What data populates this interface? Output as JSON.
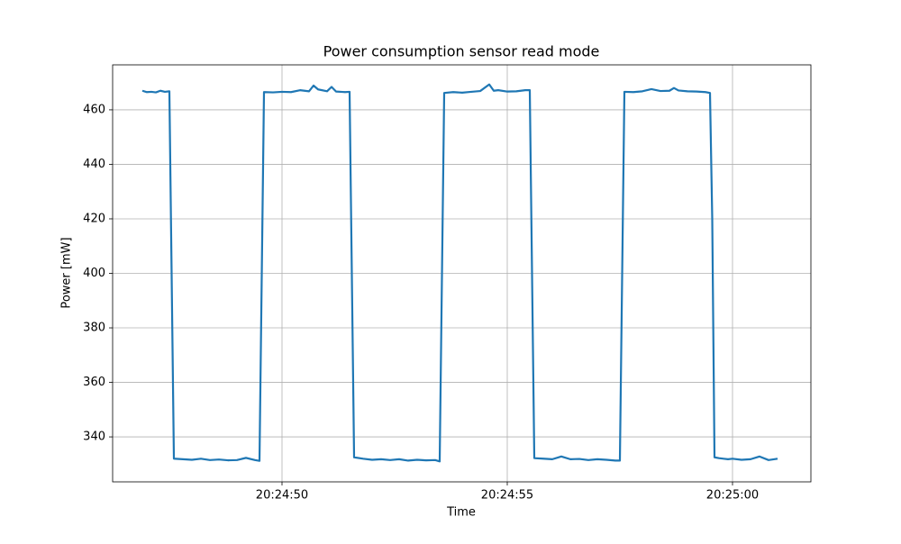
{
  "chart_data": {
    "type": "line",
    "title": "Power consumption sensor read mode",
    "xlabel": "Time",
    "ylabel": "Power [mW]",
    "color": "#1f77b4",
    "grid": true,
    "xlim": [
      "20:24:46.24",
      "20:25:01.74"
    ],
    "xticks": [
      "20:24:50",
      "20:24:55",
      "20:25:00"
    ],
    "ylim": [
      323.5,
      476.5
    ],
    "yticks": [
      340,
      360,
      380,
      400,
      420,
      440,
      460
    ],
    "x": [
      "20:24:46.9",
      "20:24:47.0",
      "20:24:47.1",
      "20:24:47.2",
      "20:24:47.3",
      "20:24:47.4",
      "20:24:47.5",
      "20:24:47.6",
      "20:24:47.8",
      "20:24:48.0",
      "20:24:48.2",
      "20:24:48.4",
      "20:24:48.6",
      "20:24:48.8",
      "20:24:49.0",
      "20:24:49.2",
      "20:24:49.4",
      "20:24:49.5",
      "20:24:49.6",
      "20:24:49.8",
      "20:24:50.0",
      "20:24:50.2",
      "20:24:50.4",
      "20:24:50.6",
      "20:24:50.7",
      "20:24:50.8",
      "20:24:51.0",
      "20:24:51.1",
      "20:24:51.2",
      "20:24:51.4",
      "20:24:51.5",
      "20:24:51.6",
      "20:24:51.8",
      "20:24:52.0",
      "20:24:52.2",
      "20:24:52.4",
      "20:24:52.6",
      "20:24:52.8",
      "20:24:53.0",
      "20:24:53.2",
      "20:24:53.4",
      "20:24:53.5",
      "20:24:53.6",
      "20:24:53.8",
      "20:24:54.0",
      "20:24:54.2",
      "20:24:54.4",
      "20:24:54.6",
      "20:24:54.7",
      "20:24:54.8",
      "20:24:55.0",
      "20:24:55.2",
      "20:24:55.4",
      "20:24:55.5",
      "20:24:55.6",
      "20:24:55.8",
      "20:24:56.0",
      "20:24:56.2",
      "20:24:56.4",
      "20:24:56.6",
      "20:24:56.8",
      "20:24:57.0",
      "20:24:57.2",
      "20:24:57.4",
      "20:24:57.5",
      "20:24:57.6",
      "20:24:57.8",
      "20:24:58.0",
      "20:24:58.2",
      "20:24:58.4",
      "20:24:58.6",
      "20:24:58.7",
      "20:24:58.8",
      "20:24:59.0",
      "20:24:59.2",
      "20:24:59.4",
      "20:24:59.5",
      "20:24:59.55",
      "20:24:59.6",
      "20:24:59.7",
      "20:24:59.8",
      "20:24:59.9",
      "20:25:00.0",
      "20:25:00.2",
      "20:25:00.4",
      "20:25:00.6",
      "20:25:00.8",
      "20:25:01.0"
    ],
    "values": [
      467,
      466.5,
      466.6,
      466.4,
      467,
      466.6,
      466.8,
      332,
      331.8,
      331.6,
      332,
      331.5,
      331.7,
      331.4,
      331.5,
      332.3,
      331.5,
      331.2,
      466.5,
      466.4,
      466.6,
      466.5,
      467.2,
      466.8,
      468.9,
      467.5,
      466.8,
      468.4,
      466.7,
      466.5,
      466.6,
      332.5,
      332,
      331.6,
      331.8,
      331.5,
      331.8,
      331.3,
      331.6,
      331.4,
      331.5,
      331,
      466.2,
      466.5,
      466.3,
      466.6,
      466.9,
      469.3,
      467,
      467.2,
      466.7,
      466.8,
      467.2,
      467.2,
      332.2,
      332,
      331.8,
      332.8,
      331.8,
      331.9,
      331.5,
      331.8,
      331.6,
      331.3,
      331.3,
      466.6,
      466.5,
      466.8,
      467.6,
      466.9,
      467,
      468,
      467.1,
      466.8,
      466.7,
      466.5,
      466.2,
      420,
      332.5,
      332.2,
      332,
      331.8,
      332,
      331.6,
      331.8,
      332.8,
      331.5,
      332
    ]
  }
}
